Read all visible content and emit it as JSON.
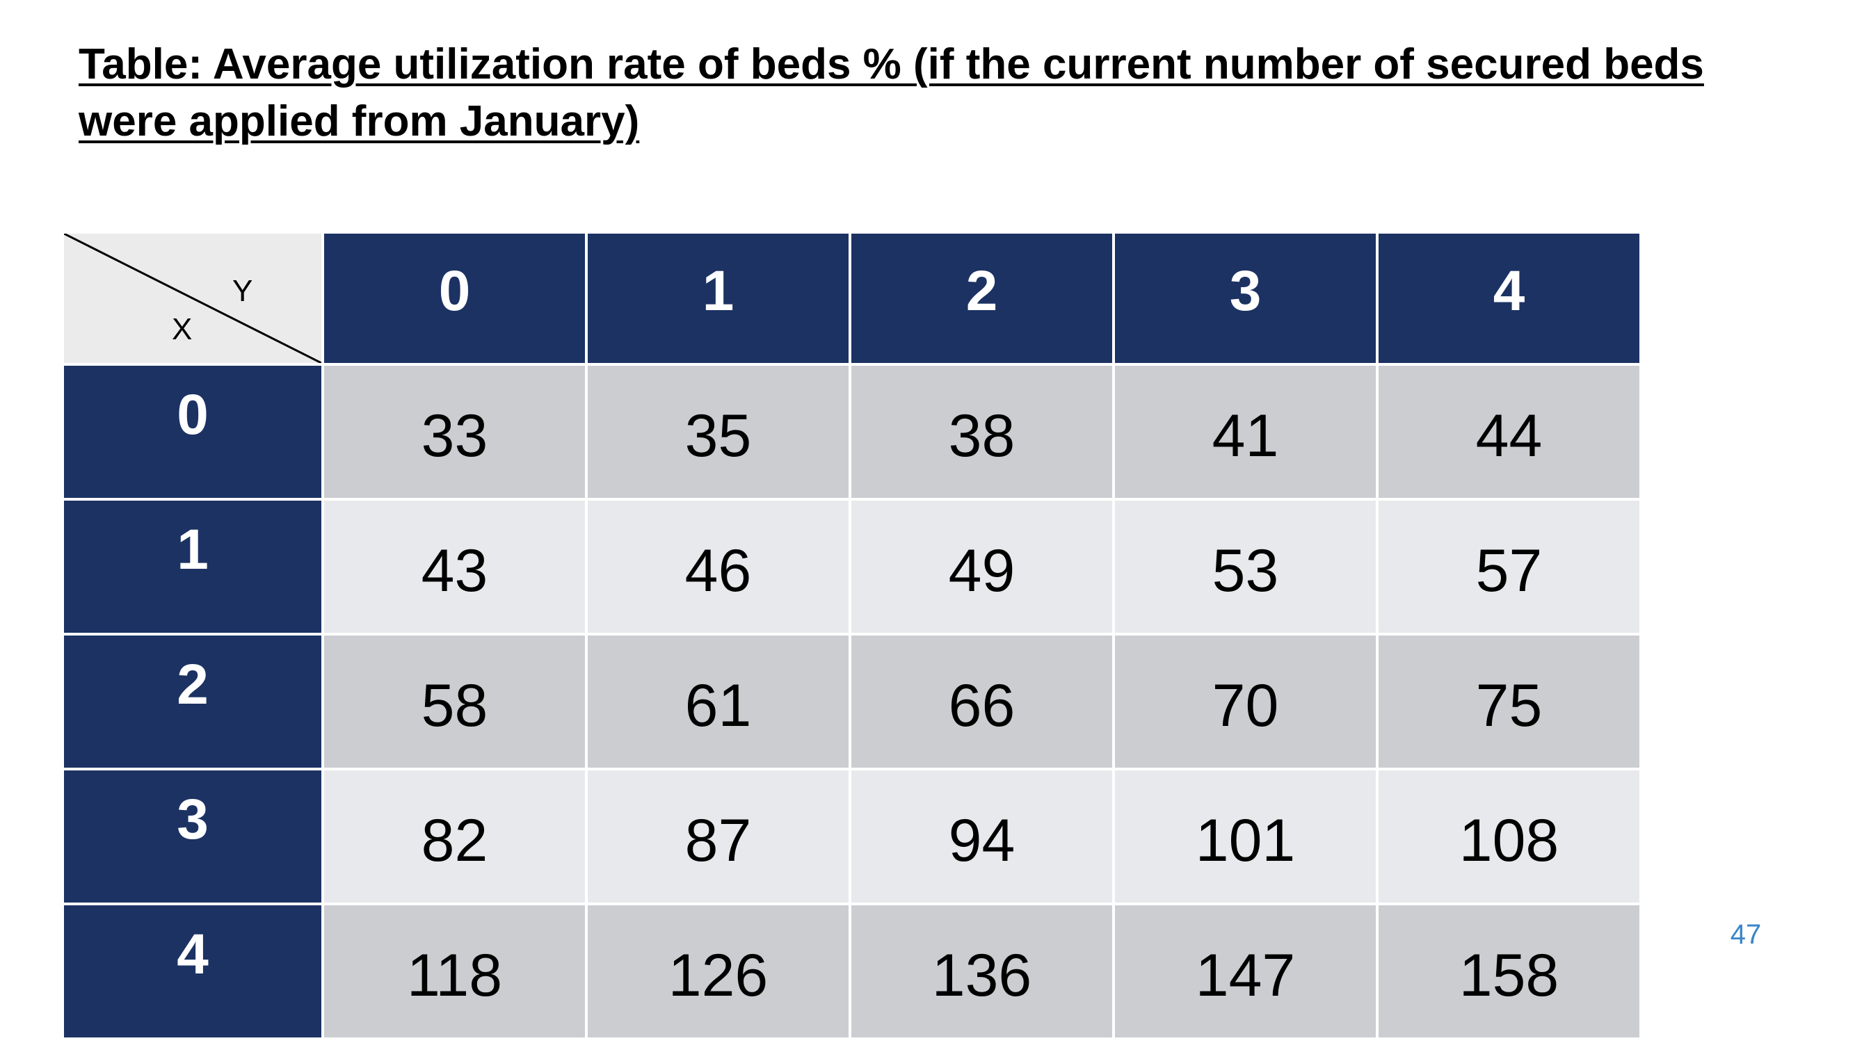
{
  "title": "Table: Average utilization rate of beds % (if the current number of secured beds were applied from January)",
  "page_number": "47",
  "table": {
    "corner": {
      "column_axis_label": "Y",
      "row_axis_label": "X"
    },
    "column_headers": [
      "0",
      "1",
      "2",
      "3",
      "4"
    ],
    "rows": [
      {
        "header": "0",
        "cells": [
          "33",
          "35",
          "38",
          "41",
          "44"
        ]
      },
      {
        "header": "1",
        "cells": [
          "43",
          "46",
          "49",
          "53",
          "57"
        ]
      },
      {
        "header": "2",
        "cells": [
          "58",
          "61",
          "66",
          "70",
          "75"
        ]
      },
      {
        "header": "3",
        "cells": [
          "82",
          "87",
          "94",
          "101",
          "108"
        ]
      },
      {
        "header": "4",
        "cells": [
          "118",
          "126",
          "136",
          "147",
          "158"
        ]
      }
    ]
  },
  "colors": {
    "header_fill": "#1b3263",
    "row_fill_dark": "#cbcdd1",
    "row_fill_light": "#e8e9ec",
    "corner_fill": "#ebebeb",
    "page_number": "#3a86c8"
  }
}
